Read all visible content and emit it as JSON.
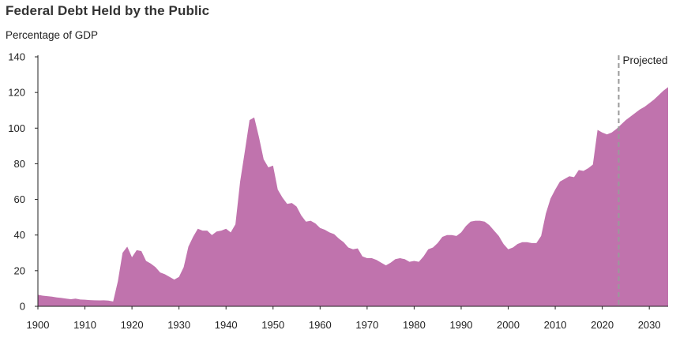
{
  "chart_data": {
    "type": "area",
    "title": "Federal Debt Held by the Public",
    "ylabel": "Percentage of GDP",
    "xlabel": "",
    "xlim": [
      1900,
      2034
    ],
    "ylim": [
      0,
      140
    ],
    "x_ticks": [
      1900,
      1910,
      1920,
      1930,
      1940,
      1950,
      1960,
      1970,
      1980,
      1990,
      2000,
      2010,
      2020,
      2030
    ],
    "y_ticks": [
      0,
      20,
      40,
      60,
      80,
      100,
      120,
      140
    ],
    "grid": false,
    "colors": {
      "area": "#c073ad",
      "projection_line": "#9a9a9a",
      "axis": "#222222"
    },
    "annotation": {
      "label": "Projected",
      "x": 2023.5
    },
    "series": [
      {
        "x": [
          1900,
          1901,
          1902,
          1903,
          1904,
          1905,
          1906,
          1907,
          1908,
          1909,
          1910,
          1911,
          1912,
          1913,
          1914,
          1915,
          1916,
          1917,
          1918,
          1919,
          1920,
          1921,
          1922,
          1923,
          1924,
          1925,
          1926,
          1927,
          1928,
          1929,
          1930,
          1931,
          1932,
          1933,
          1934,
          1935,
          1936,
          1937,
          1938,
          1939,
          1940,
          1941,
          1942,
          1943,
          1944,
          1945,
          1946,
          1947,
          1948,
          1949,
          1950,
          1951,
          1952,
          1953,
          1954,
          1955,
          1956,
          1957,
          1958,
          1959,
          1960,
          1961,
          1962,
          1963,
          1964,
          1965,
          1966,
          1967,
          1968,
          1969,
          1970,
          1971,
          1972,
          1973,
          1974,
          1975,
          1976,
          1977,
          1978,
          1979,
          1980,
          1981,
          1982,
          1983,
          1984,
          1985,
          1986,
          1987,
          1988,
          1989,
          1990,
          1991,
          1992,
          1993,
          1994,
          1995,
          1996,
          1997,
          1998,
          1999,
          2000,
          2001,
          2002,
          2003,
          2004,
          2005,
          2006,
          2007,
          2008,
          2009,
          2010,
          2011,
          2012,
          2013,
          2014,
          2015,
          2016,
          2017,
          2018,
          2019,
          2020,
          2021,
          2022,
          2023,
          2024,
          2025,
          2026,
          2027,
          2028,
          2029,
          2030,
          2031,
          2032,
          2033,
          2034
        ],
        "values": [
          6.5,
          6,
          5.7,
          5.4,
          5,
          4.7,
          4.3,
          4,
          4.3,
          3.8,
          3.7,
          3.5,
          3.4,
          3.3,
          3.4,
          3.2,
          2.7,
          14,
          30,
          33.5,
          27.5,
          31.5,
          31,
          25.5,
          24,
          22,
          19,
          18,
          16.5,
          15,
          16.5,
          22,
          33.5,
          39,
          43.5,
          42.5,
          42.5,
          40,
          42,
          42.5,
          43.5,
          41.5,
          46,
          70,
          87,
          104.5,
          106,
          95,
          82.5,
          78,
          79,
          65.5,
          61,
          57.5,
          58,
          56,
          51,
          47.5,
          48,
          46.5,
          44,
          43,
          41.5,
          40.5,
          38,
          36,
          33,
          32,
          32.5,
          28,
          27,
          27,
          26,
          24.5,
          23,
          24.5,
          26.5,
          27,
          26.5,
          25,
          25.5,
          25,
          28,
          32,
          33,
          35.5,
          39,
          40,
          40,
          39.5,
          41.5,
          45,
          47.5,
          48,
          48,
          47.5,
          45.5,
          42.5,
          39.5,
          35,
          32,
          33,
          35,
          36,
          36,
          35.5,
          35.5,
          39.5,
          52,
          60.5,
          65.5,
          70,
          71.5,
          73,
          72.5,
          76.5,
          76,
          77.5,
          79.5,
          99,
          97.5,
          96.5,
          97.5,
          99.5,
          102,
          104.5,
          106.5,
          108.5,
          110.5,
          112,
          114,
          116,
          118.5,
          121,
          123
        ]
      }
    ]
  }
}
